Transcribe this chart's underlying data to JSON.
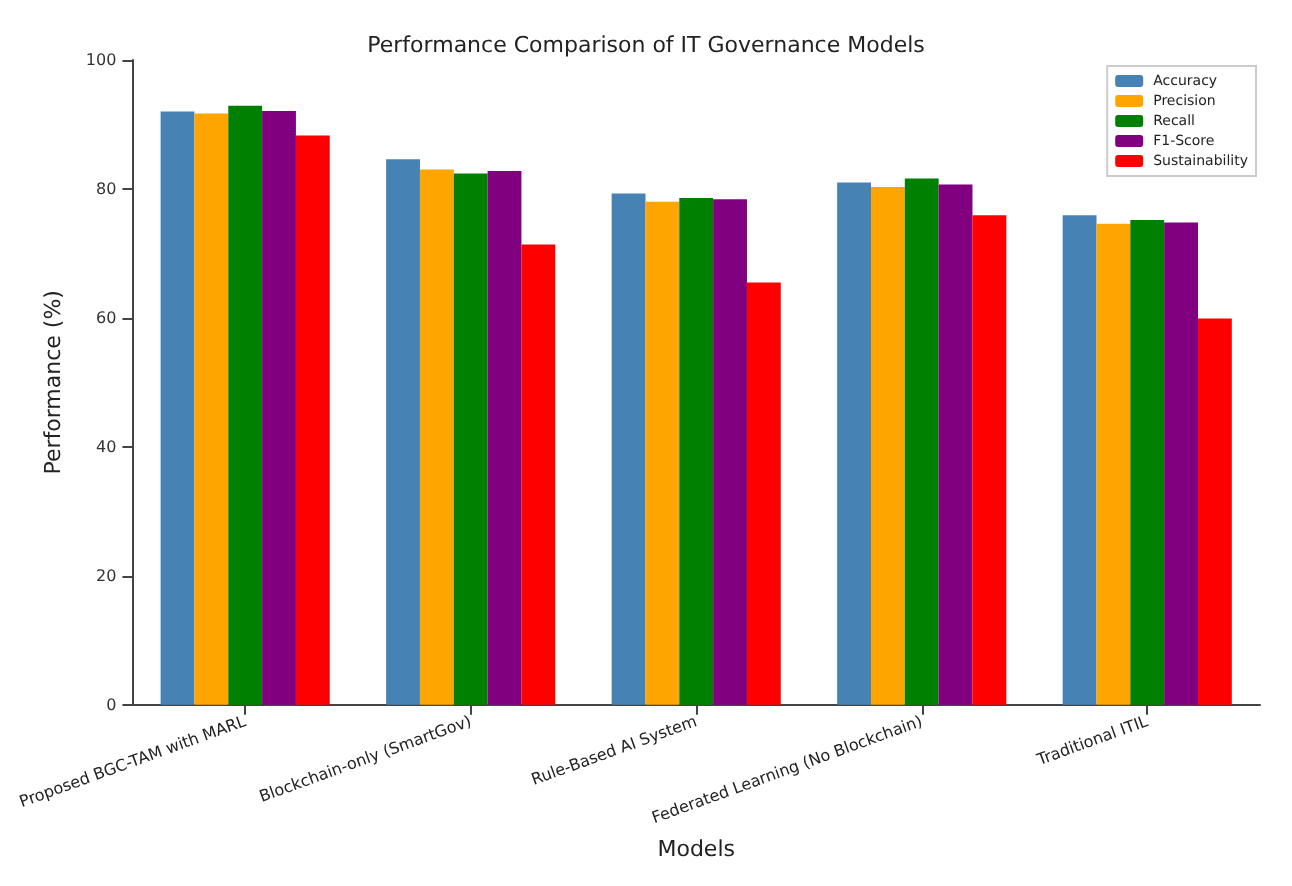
{
  "chart_data": {
    "type": "bar",
    "title": "Performance Comparison of IT Governance Models",
    "xlabel": "Models",
    "ylabel": "Performance (%)",
    "categories": [
      "Proposed BGC-TAM with MARL",
      "Blockchain-only (SmartGov)",
      "Rule-Based AI System",
      "Federated Learning (No Blockchain)",
      "Traditional ITIL"
    ],
    "series": [
      {
        "name": "Accuracy",
        "color": "#4682b4",
        "values": [
          92.0,
          84.6,
          79.3,
          81.0,
          75.9
        ]
      },
      {
        "name": "Precision",
        "color": "#ffa500",
        "values": [
          91.7,
          83.0,
          78.0,
          80.3,
          74.6
        ]
      },
      {
        "name": "Recall",
        "color": "#008000",
        "values": [
          92.9,
          82.4,
          78.6,
          81.6,
          75.2
        ]
      },
      {
        "name": "F1-Score",
        "color": "#800080",
        "values": [
          92.1,
          82.8,
          78.4,
          80.7,
          74.8
        ]
      },
      {
        "name": "Sustainability",
        "color": "#ff0000",
        "values": [
          88.3,
          71.4,
          65.5,
          75.9,
          59.9
        ]
      }
    ],
    "ylim": [
      0,
      100
    ],
    "yticks": [
      0,
      20,
      40,
      60,
      80,
      100
    ],
    "grid": false,
    "legend": "top right"
  }
}
